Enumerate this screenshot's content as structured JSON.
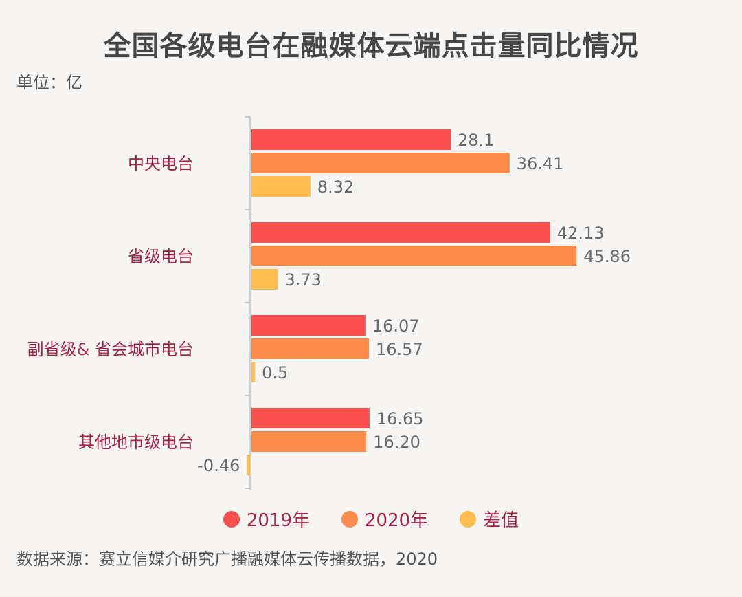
{
  "title": "全国各级电台在融媒体云端点击量同比情况",
  "unit": "单位：亿",
  "source": "数据来源：赛立信媒介研究广播融媒体云传播数据，2020",
  "colors": {
    "s2019": "#f9504f",
    "s2020": "#fd8b4c",
    "diff": "#fdbc4f",
    "category_label": "#a8224a",
    "value_label": "#6a6a6a",
    "axis": "#cfcfcf"
  },
  "chart_data": {
    "type": "bar",
    "orientation": "horizontal",
    "categories": [
      "中央电台",
      "省级电台",
      "副省级& 省会城市电台",
      "其他地市级电台"
    ],
    "series": [
      {
        "name": "2019年",
        "values": [
          28.1,
          42.13,
          16.07,
          16.65
        ],
        "labels": [
          "28.1",
          "42.13",
          "16.07",
          "16.65"
        ]
      },
      {
        "name": "2020年",
        "values": [
          36.41,
          45.86,
          16.57,
          16.2
        ],
        "labels": [
          "36.41",
          "45.86",
          "16.57",
          "16.20"
        ]
      },
      {
        "name": "差值",
        "values": [
          8.32,
          3.73,
          0.5,
          -0.46
        ],
        "labels": [
          "8.32",
          "3.73",
          "0.5",
          "-0.46"
        ]
      }
    ],
    "legend_position": "bottom"
  }
}
